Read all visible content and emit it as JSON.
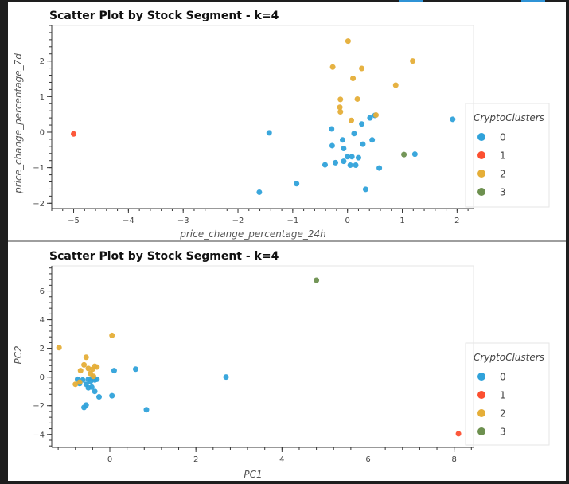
{
  "chart_data": [
    {
      "type": "scatter",
      "title": "Scatter Plot by Stock Segment - k=4",
      "xlabel": "price_change_percentage_24h",
      "ylabel": "price_change_percentage_7d",
      "xlim": [
        -5.4,
        2.3
      ],
      "ylim": [
        -2.15,
        3.0
      ],
      "xticks": [
        -5,
        -4,
        -3,
        -2,
        -1,
        0,
        1,
        2
      ],
      "yticks": [
        -2,
        -1,
        0,
        1,
        2
      ],
      "legend_title": "CryptoClusters",
      "legend_position": "right",
      "series": [
        {
          "name": "0",
          "color": "#30a2da",
          "points": [
            [
              -1.43,
              -0.02
            ],
            [
              -1.61,
              -1.69
            ],
            [
              -0.93,
              -1.45
            ],
            [
              -0.41,
              -0.92
            ],
            [
              -0.29,
              0.09
            ],
            [
              -0.28,
              -0.38
            ],
            [
              -0.22,
              -0.86
            ],
            [
              -0.09,
              -0.22
            ],
            [
              -0.07,
              -0.46
            ],
            [
              -0.07,
              -0.82
            ],
            [
              0.0,
              -0.69
            ],
            [
              0.05,
              -0.93
            ],
            [
              0.08,
              -0.69
            ],
            [
              0.15,
              -0.93
            ],
            [
              0.12,
              -0.04
            ],
            [
              0.2,
              -0.72
            ],
            [
              0.26,
              0.23
            ],
            [
              0.28,
              -0.34
            ],
            [
              0.33,
              -1.61
            ],
            [
              0.41,
              0.4
            ],
            [
              0.45,
              -0.22
            ],
            [
              0.5,
              0.47
            ],
            [
              0.58,
              -1.01
            ],
            [
              1.23,
              -0.62
            ],
            [
              1.92,
              0.36
            ]
          ]
        },
        {
          "name": "1",
          "color": "#fc4f30",
          "points": [
            [
              -5.0,
              -0.05
            ]
          ]
        },
        {
          "name": "2",
          "color": "#e5ae38",
          "points": [
            [
              0.01,
              2.56
            ],
            [
              -0.27,
              1.83
            ],
            [
              0.26,
              1.79
            ],
            [
              0.1,
              1.51
            ],
            [
              1.19,
              2.0
            ],
            [
              0.88,
              1.32
            ],
            [
              -0.13,
              0.92
            ],
            [
              0.18,
              0.93
            ],
            [
              -0.14,
              0.7
            ],
            [
              -0.13,
              0.57
            ],
            [
              0.07,
              0.33
            ],
            [
              0.52,
              0.48
            ]
          ]
        },
        {
          "name": "3",
          "color": "#6d904f",
          "points": [
            [
              1.03,
              -0.63
            ]
          ]
        }
      ]
    },
    {
      "type": "scatter",
      "title": "Scatter Plot by Stock Segment - k=4",
      "xlabel": "PC1",
      "ylabel": "PC2",
      "xlim": [
        -1.35,
        8.45
      ],
      "ylim": [
        -4.9,
        7.75
      ],
      "xticks": [
        0,
        2,
        4,
        6,
        8
      ],
      "yticks": [
        -4,
        -2,
        0,
        2,
        4,
        6
      ],
      "legend_title": "CryptoClusters",
      "legend_position": "right",
      "series": [
        {
          "name": "0",
          "color": "#30a2da",
          "points": [
            [
              -0.75,
              -0.15
            ],
            [
              -0.7,
              -0.45
            ],
            [
              -0.63,
              -0.2
            ],
            [
              -0.55,
              -0.5
            ],
            [
              -0.5,
              -0.15
            ],
            [
              -0.45,
              -0.3
            ],
            [
              -0.4,
              -0.05
            ],
            [
              -0.35,
              -0.2
            ],
            [
              -0.3,
              -0.15
            ],
            [
              -0.5,
              -0.75
            ],
            [
              -0.42,
              -0.7
            ],
            [
              -0.35,
              -1.0
            ],
            [
              -0.25,
              -1.38
            ],
            [
              -0.6,
              -2.12
            ],
            [
              -0.55,
              -1.95
            ],
            [
              0.05,
              -1.3
            ],
            [
              0.1,
              0.45
            ],
            [
              0.6,
              0.55
            ],
            [
              0.85,
              -2.28
            ],
            [
              2.7,
              0.0
            ]
          ]
        },
        {
          "name": "1",
          "color": "#fc4f30",
          "points": [
            [
              8.1,
              -3.95
            ]
          ]
        },
        {
          "name": "2",
          "color": "#e5ae38",
          "points": [
            [
              -1.18,
              2.05
            ],
            [
              0.05,
              2.9
            ],
            [
              -0.55,
              1.38
            ],
            [
              -0.6,
              0.85
            ],
            [
              -0.68,
              0.45
            ],
            [
              -0.5,
              0.6
            ],
            [
              -0.4,
              0.55
            ],
            [
              -0.35,
              0.75
            ],
            [
              -0.3,
              0.7
            ],
            [
              -0.45,
              0.25
            ],
            [
              -0.38,
              0.05
            ],
            [
              -0.8,
              -0.5
            ],
            [
              -0.7,
              -0.35
            ]
          ]
        },
        {
          "name": "3",
          "color": "#6d904f",
          "points": [
            [
              4.8,
              6.75
            ]
          ]
        }
      ]
    }
  ]
}
